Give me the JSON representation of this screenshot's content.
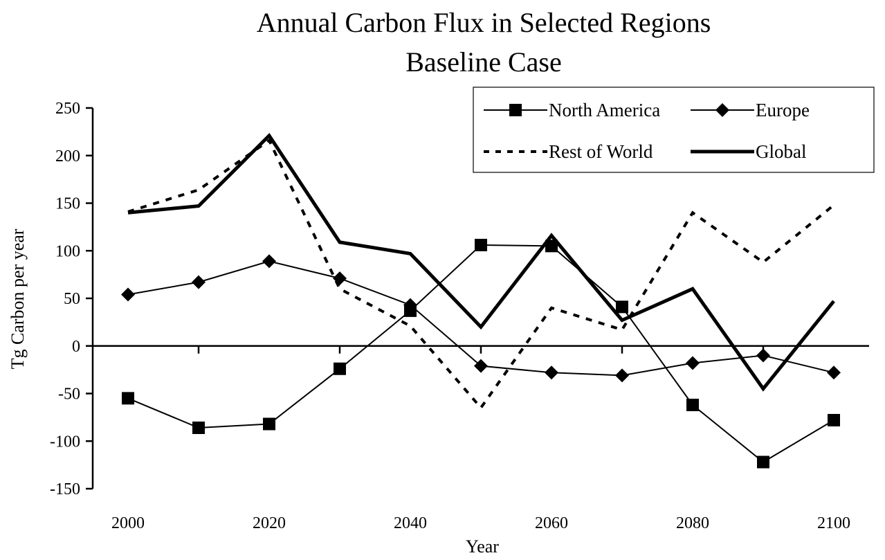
{
  "chart_data": {
    "type": "line",
    "title": "Annual Carbon Flux in Selected Regions",
    "subtitle": "Baseline Case",
    "xlabel": "Year",
    "ylabel": "Tg Carbon per year",
    "x": [
      2000,
      2010,
      2020,
      2030,
      2040,
      2050,
      2060,
      2070,
      2080,
      2090,
      2100
    ],
    "x_tick_labels": [
      "2000",
      "2020",
      "2040",
      "2060",
      "2080",
      "2100"
    ],
    "y_tick_labels": [
      "250",
      "200",
      "150",
      "100",
      "50",
      "0",
      "-50",
      "-100",
      "-150"
    ],
    "xlim": [
      1995,
      2105
    ],
    "ylim": [
      -150,
      250
    ],
    "grid": false,
    "legend_position": "top-right",
    "series": [
      {
        "name": "North America",
        "style": "thin solid, square markers",
        "color": "#000000",
        "values": [
          -55,
          -86,
          -82,
          -24,
          37,
          106,
          105,
          41,
          -62,
          -122,
          -78
        ]
      },
      {
        "name": "Europe",
        "style": "thin solid, diamond markers",
        "color": "#000000",
        "values": [
          54,
          67,
          89,
          71,
          43,
          -21,
          -28,
          -31,
          -18,
          -10,
          -28
        ]
      },
      {
        "name": "Rest of World",
        "style": "dashed",
        "color": "#000000",
        "values": [
          141,
          164,
          216,
          60,
          21,
          -65,
          40,
          17,
          140,
          88,
          148
        ]
      },
      {
        "name": "Global",
        "style": "thick solid",
        "color": "#000000",
        "values": [
          140,
          147,
          221,
          109,
          97,
          20,
          116,
          27,
          60,
          -45,
          47
        ]
      }
    ]
  }
}
